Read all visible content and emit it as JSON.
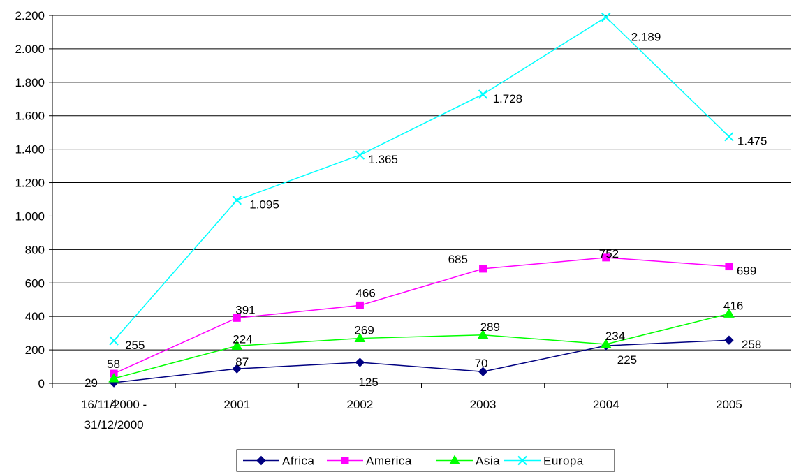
{
  "chart_data": {
    "type": "line",
    "categories": [
      "16/11/2000 -\n31/12/2000",
      "2001",
      "2002",
      "2003",
      "2004",
      "2005"
    ],
    "ylim": [
      0,
      2200
    ],
    "yticks": [
      0,
      200,
      400,
      600,
      800,
      1000,
      1200,
      1400,
      1600,
      1800,
      2000,
      2200
    ],
    "ytick_labels": [
      "0",
      "200",
      "400",
      "600",
      "800",
      "1.000",
      "1.200",
      "1.400",
      "1.600",
      "1.800",
      "2.000",
      "2.200"
    ],
    "grid": "horizontal",
    "legend_position": "bottom",
    "series": [
      {
        "name": "Africa",
        "color": "#000080",
        "marker": "diamond",
        "values": [
          4,
          87,
          125,
          70,
          225,
          258
        ],
        "labels": [
          "4",
          "87",
          "125",
          "70",
          "225",
          "258"
        ]
      },
      {
        "name": "America",
        "color": "#FF00FF",
        "marker": "square",
        "values": [
          58,
          391,
          466,
          685,
          752,
          699
        ],
        "labels": [
          "58",
          "391",
          "466",
          "685",
          "752",
          "699"
        ]
      },
      {
        "name": "Asia",
        "color": "#00FF00",
        "marker": "triangle",
        "values": [
          29,
          224,
          269,
          289,
          234,
          416
        ],
        "labels": [
          "29",
          "224",
          "269",
          "289",
          "234",
          "416"
        ]
      },
      {
        "name": "Europa",
        "color": "#00FFFF",
        "marker": "x",
        "values": [
          255,
          1095,
          1365,
          1728,
          2189,
          1475
        ],
        "labels": [
          "255",
          "1.095",
          "1.365",
          "1.728",
          "2.189",
          "1.475"
        ]
      }
    ]
  }
}
